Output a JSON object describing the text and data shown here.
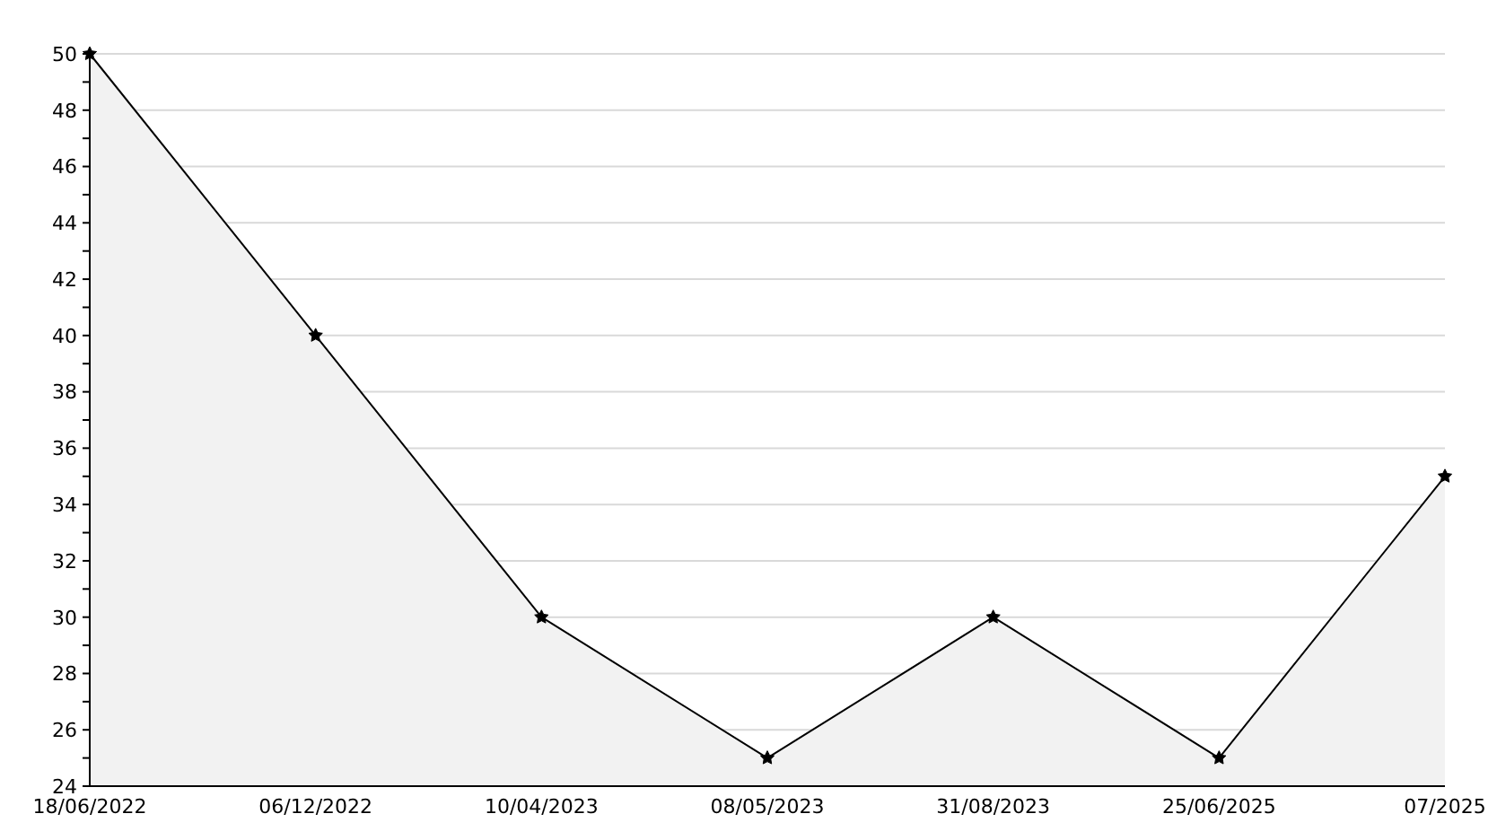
{
  "chart_data": {
    "type": "area",
    "categories": [
      "18/06/2022",
      "06/12/2022",
      "10/04/2023",
      "08/05/2023",
      "31/08/2023",
      "25/06/2025",
      "07/2025"
    ],
    "series": [
      {
        "color": "#000000",
        "values": [
          50,
          40,
          30,
          25,
          30,
          25,
          35
        ]
      }
    ],
    "ylim": [
      24,
      50
    ],
    "yticks": [
      24,
      {
        "value": 25,
        "label": null
      },
      26,
      {
        "value": 27,
        "label": null
      },
      28,
      {
        "value": 29,
        "label": null
      },
      30,
      {
        "value": 31,
        "label": null
      },
      32,
      {
        "value": 33,
        "label": null
      },
      34,
      {
        "value": 35,
        "label": null
      },
      36,
      {
        "value": 37,
        "label": null
      },
      38,
      {
        "value": 39,
        "label": null
      },
      40,
      {
        "value": 41,
        "label": null
      },
      42,
      {
        "value": 43,
        "label": null
      },
      44,
      {
        "value": 45,
        "label": null
      },
      46,
      {
        "value": 47,
        "label": null
      },
      48,
      {
        "value": 49,
        "label": null
      },
      50
    ],
    "grid": "y",
    "marker": "star"
  }
}
